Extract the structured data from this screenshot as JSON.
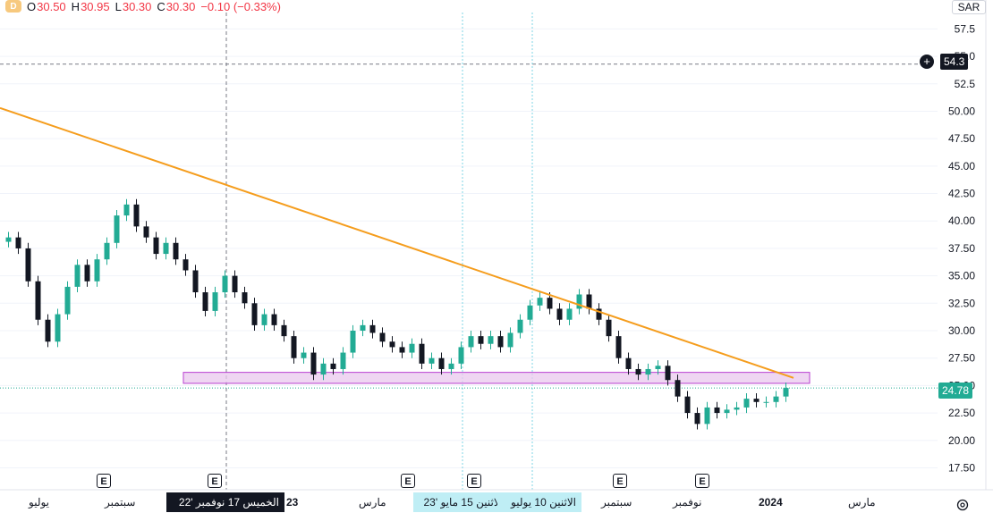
{
  "header": {
    "interval_badge": "D",
    "open_key": "O",
    "open": "30.50",
    "high_key": "H",
    "high": "30.95",
    "low_key": "L",
    "low": "30.30",
    "close_key": "C",
    "close": "30.30",
    "change": "−0.10 (−0.33%)"
  },
  "currency": "SAR",
  "crosshair_price": "54.3",
  "last_price": "24.78",
  "colors": {
    "up": "#22ab94",
    "down": "#131722",
    "trendline": "#f59d1d",
    "zone": "#e9c8ee",
    "zone_border": "#b93dd1",
    "price_tag": "#22ab94"
  },
  "earnings_marker": "E",
  "time_axis": {
    "labels": [
      "يوليو",
      "سبتمبر",
      "23",
      "مارس",
      "سبتمبر",
      "نوفمبر",
      "2024",
      "مارس"
    ],
    "crosshair_date": "الخميس 17 نوفمبر '22",
    "highlight_start": "الاثنين 15 مايو '23",
    "highlight_end": "الاثنين 10 يوليو"
  },
  "chart_data": {
    "type": "candlestick",
    "ylim": [
      15.5,
      59
    ],
    "y_ticks": [
      "57.5",
      "55.0",
      "52.5",
      "50.00",
      "47.50",
      "45.00",
      "42.50",
      "40.00",
      "37.50",
      "35.00",
      "32.50",
      "30.00",
      "27.50",
      "25.00",
      "22.50",
      "20.00",
      "17.50"
    ],
    "close_series": [
      38.5,
      37.5,
      34.5,
      31.0,
      29.0,
      31.5,
      34.0,
      36.0,
      34.5,
      36.5,
      38.0,
      40.5,
      41.5,
      39.5,
      38.5,
      37.0,
      38.0,
      36.5,
      35.5,
      33.5,
      31.8,
      33.5,
      35.0,
      33.5,
      32.5,
      30.5,
      31.5,
      30.5,
      29.5,
      27.5,
      28.0,
      26.0,
      27.0,
      26.5,
      28.0,
      30.0,
      30.5,
      29.8,
      29.0,
      28.5,
      28.0,
      28.8,
      27.0,
      27.5,
      26.5,
      27.0,
      28.5,
      29.5,
      28.8,
      29.5,
      28.5,
      29.8,
      31.0,
      32.3,
      33.0,
      32.0,
      31.0,
      32.0,
      33.3,
      32.0,
      31.0,
      29.5,
      27.5,
      26.5,
      26.0,
      26.5,
      26.8,
      25.5,
      24.0,
      22.5,
      21.5,
      23.0,
      22.5,
      22.8,
      23.0,
      23.8,
      23.5,
      23.5,
      24.0,
      24.78
    ],
    "trendline": {
      "from": {
        "index": 0,
        "value": 50.3
      },
      "to": {
        "index": 79,
        "value": 25.7
      }
    },
    "support_zone": {
      "from_index": 17,
      "to_index": 80,
      "low": 25.2,
      "high": 26.2
    },
    "last_price": 24.78,
    "crosshair_price": 54.3,
    "earnings_indices": [
      10,
      20,
      38,
      44,
      58,
      67
    ]
  }
}
